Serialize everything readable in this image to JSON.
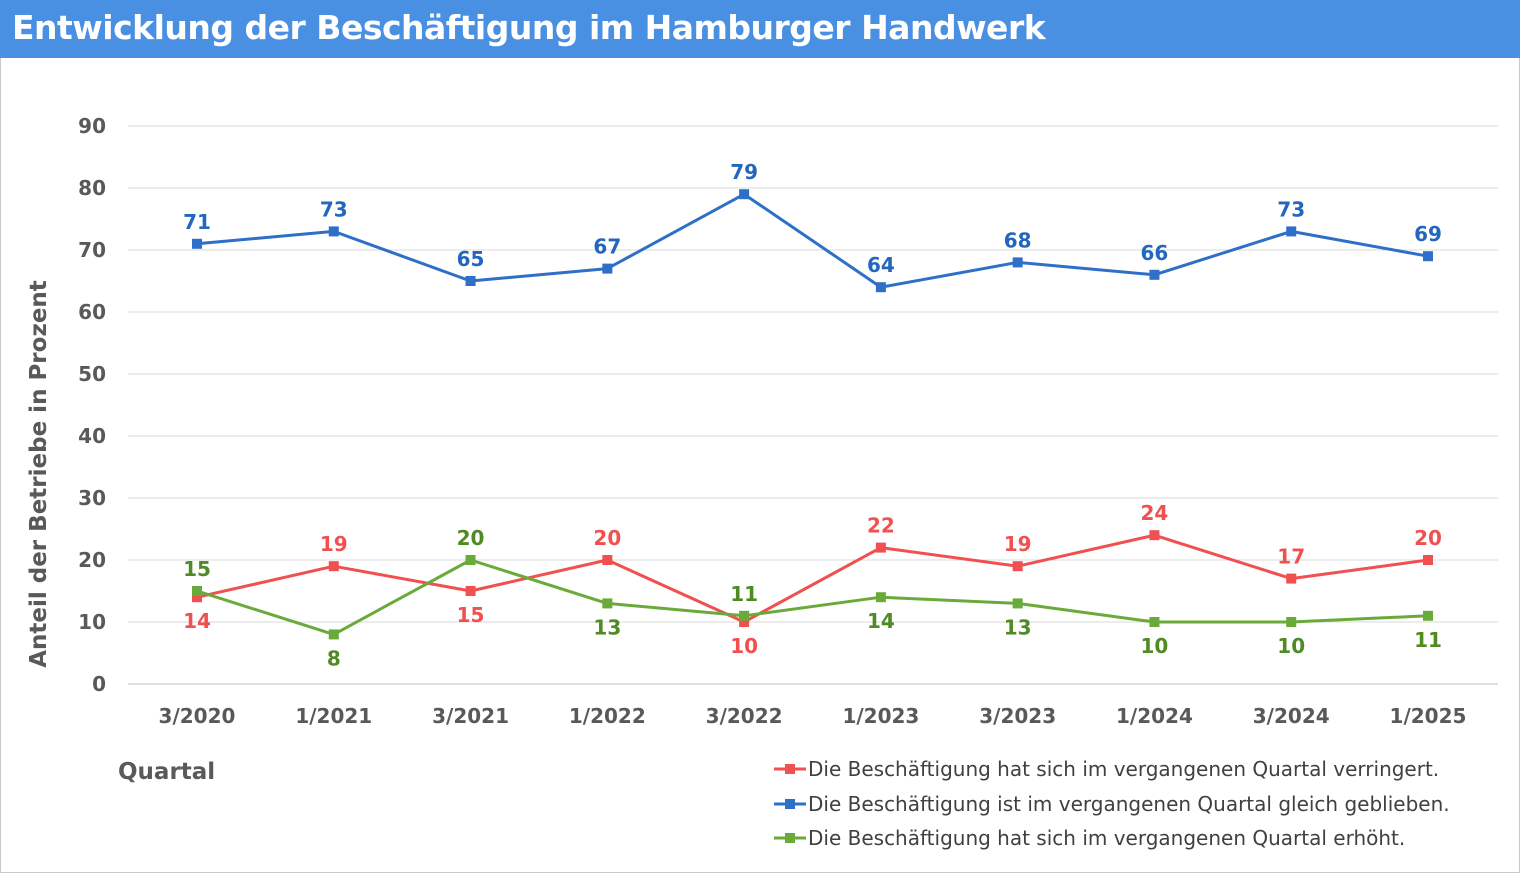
{
  "header": {
    "title": "Entwicklung der Beschäftigung im Hamburger Handwerk"
  },
  "chart_data": {
    "type": "line",
    "title": "Entwicklung der Beschäftigung im Hamburger Handwerk",
    "xlabel": "Quartal",
    "ylabel": "Anteil der Betriebe in Prozent",
    "ylim": [
      0,
      90
    ],
    "yticks": [
      "0",
      "10",
      "20",
      "30",
      "40",
      "50",
      "60",
      "70",
      "80",
      "90"
    ],
    "grid": true,
    "legend_position": "bottom-right",
    "categories": [
      "3/2020",
      "1/2021",
      "3/2021",
      "1/2022",
      "3/2022",
      "1/2023",
      "3/2023",
      "1/2024",
      "3/2024",
      "1/2025"
    ],
    "series": [
      {
        "name": "Die Beschäftigung hat sich im vergangenen Quartal verringert.",
        "color": "#f05050",
        "label_color": "#f05050",
        "values": [
          14,
          19,
          15,
          20,
          10,
          22,
          19,
          24,
          17,
          20
        ]
      },
      {
        "name": "Die Beschäftigung ist im vergangenen Quartal gleich geblieben.",
        "color": "#2e6fc7",
        "label_color": "#2366bd",
        "values": [
          71,
          73,
          65,
          67,
          79,
          64,
          68,
          66,
          73,
          69
        ]
      },
      {
        "name": "Die Beschäftigung hat sich im vergangenen Quartal erhöht.",
        "color": "#6aaa3a",
        "label_color": "#4f8a22",
        "values": [
          15,
          8,
          20,
          13,
          11,
          14,
          13,
          10,
          10,
          11
        ]
      }
    ]
  }
}
